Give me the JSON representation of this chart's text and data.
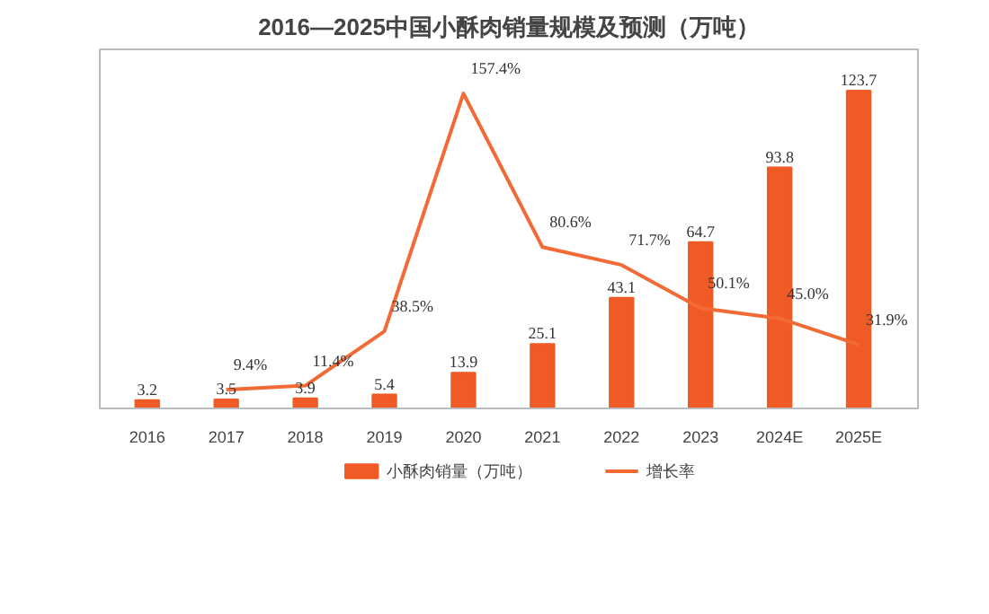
{
  "chart_data": {
    "type": "bar",
    "title": "2016—2025中国小酥肉销量规模及预测（万吨）",
    "categories": [
      "2016",
      "2017",
      "2018",
      "2019",
      "2020",
      "2021",
      "2022",
      "2023",
      "2024E",
      "2025E"
    ],
    "series": [
      {
        "name": "小酥肉销量（万吨）",
        "color": "#f05a24",
        "values": [
          3.2,
          3.5,
          3.9,
          5.4,
          13.9,
          25.1,
          43.1,
          64.7,
          93.8,
          123.7
        ]
      },
      {
        "name": "增长率",
        "type": "line",
        "axis": "y2",
        "color": "#f26a36",
        "values": [
          null,
          9.4,
          11.4,
          38.5,
          157.4,
          80.6,
          71.7,
          50.1,
          45.0,
          31.9
        ],
        "value_labels": [
          null,
          "9.4%",
          "11.4%",
          "38.5%",
          "157.4%",
          "80.6%",
          "71.7%",
          "50.1%",
          "45.0%",
          "31.9%"
        ]
      }
    ],
    "data_labels": true,
    "legend": "bottom",
    "tick_labels": "x"
  }
}
